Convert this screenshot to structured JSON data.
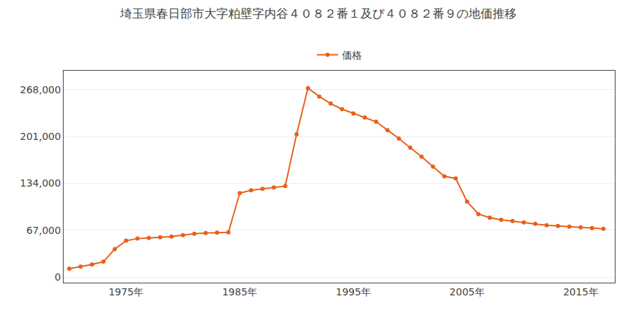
{
  "chart_data": {
    "type": "line",
    "title": "埼玉県春日部市大字粕壁字内谷４０８２番１及び４０８２番９の地価推移",
    "x": [
      1970,
      1971,
      1972,
      1973,
      1974,
      1975,
      1976,
      1977,
      1978,
      1979,
      1980,
      1981,
      1982,
      1983,
      1984,
      1985,
      1986,
      1987,
      1988,
      1989,
      1990,
      1991,
      1992,
      1993,
      1994,
      1995,
      1996,
      1997,
      1998,
      1999,
      2000,
      2001,
      2002,
      2003,
      2004,
      2005,
      2006,
      2007,
      2008,
      2009,
      2010,
      2011,
      2012,
      2013,
      2014,
      2015,
      2016,
      2017
    ],
    "series": [
      {
        "name": "価格",
        "color": "#E8601C",
        "marker": "circle",
        "values": [
          12000,
          15000,
          18000,
          22000,
          40000,
          52000,
          55000,
          56000,
          57000,
          58000,
          60000,
          62000,
          63000,
          63500,
          64000,
          120000,
          124000,
          126000,
          128000,
          130000,
          204000,
          270000,
          258000,
          248000,
          240000,
          234000,
          228000,
          222000,
          210000,
          198000,
          185000,
          172000,
          158000,
          144000,
          141000,
          108000,
          90000,
          85000,
          82000,
          80000,
          78000,
          76000,
          74000,
          73000,
          72000,
          71000,
          70000,
          69000
        ]
      }
    ],
    "xlim": [
      1969.5,
      2018
    ],
    "xticks": [
      {
        "value": 1975,
        "label": "1975年"
      },
      {
        "value": 1985,
        "label": "1985年"
      },
      {
        "value": 1995,
        "label": "1995年"
      },
      {
        "value": 2005,
        "label": "2005年"
      },
      {
        "value": 2015,
        "label": "2015年"
      }
    ],
    "ylim": [
      -8000,
      295000
    ],
    "yticks": [
      0,
      {
        "value": 67000,
        "label": "67,000"
      },
      {
        "value": 134000,
        "label": "134,000"
      },
      {
        "value": 201000,
        "label": "201,000"
      },
      {
        "value": 268000,
        "label": "268,000"
      }
    ],
    "grid": "y",
    "legend": "top"
  }
}
